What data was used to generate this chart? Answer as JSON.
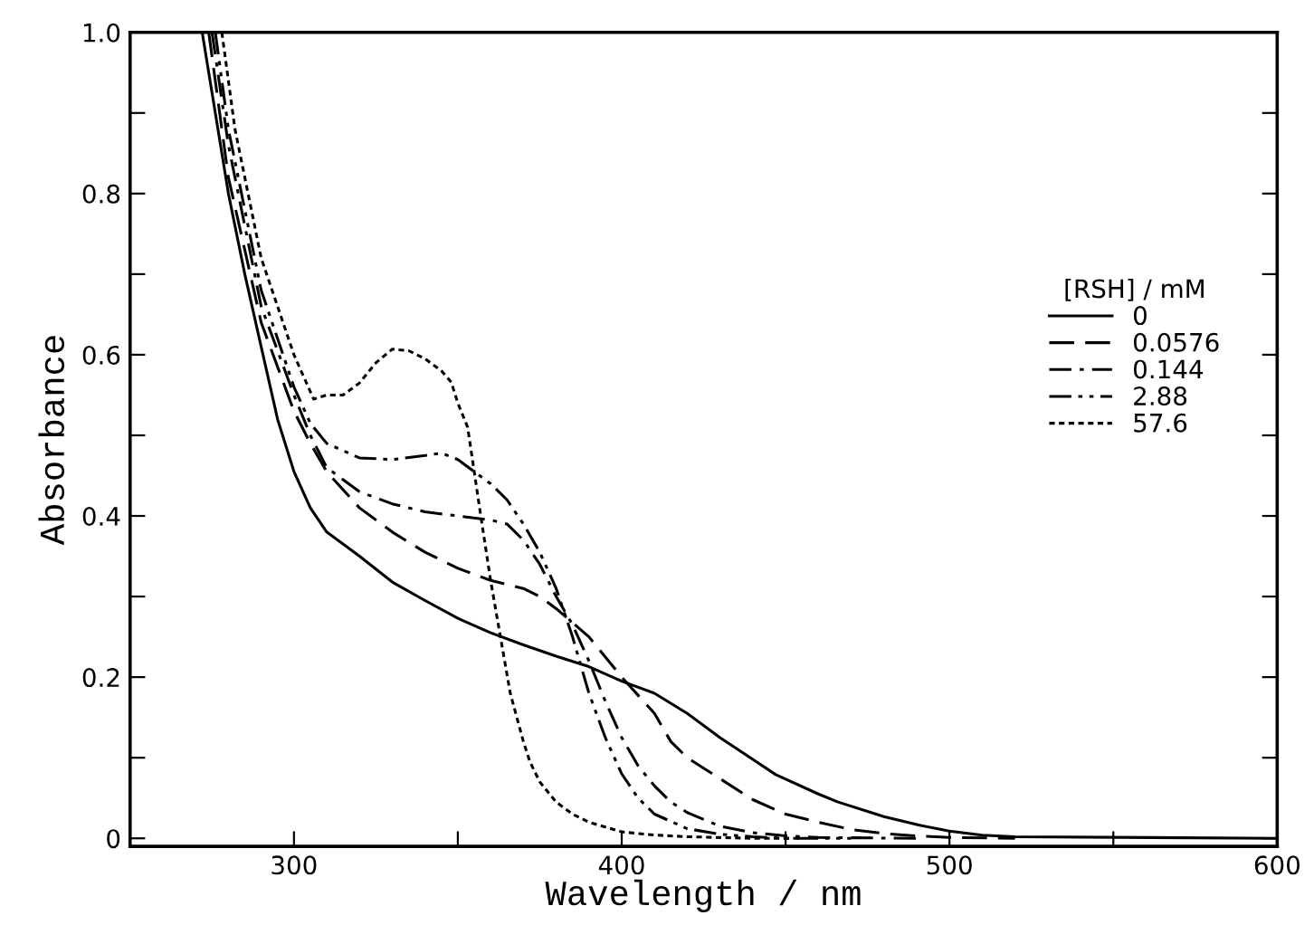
{
  "chart_data": {
    "type": "line",
    "xlabel": "Wavelength / nm",
    "ylabel": "Absorbance",
    "legend_title": "[RSH] / mM",
    "legend": "right",
    "xlim": [
      250,
      600
    ],
    "ylim": [
      -0.01,
      1.0
    ],
    "xticks": [
      300,
      {
        "value": 350,
        "label": null
      },
      400,
      {
        "value": 450,
        "label": null
      },
      500,
      {
        "value": 550,
        "label": null
      },
      600
    ],
    "yticks": [
      {
        "value": 0,
        "label": "0"
      },
      {
        "value": 0.1,
        "label": null
      },
      0.2,
      {
        "value": 0.3,
        "label": null
      },
      0.4,
      {
        "value": 0.5,
        "label": null
      },
      0.6,
      {
        "value": 0.7,
        "label": null
      },
      0.8,
      {
        "value": 0.9,
        "label": null
      },
      {
        "value": 1.0,
        "label": "1.0"
      }
    ],
    "grid": false,
    "series": [
      {
        "name": "0",
        "color": "#000000",
        "line_style": "solid",
        "x": [
          272,
          280,
          285,
          290,
          295,
          300,
          305,
          310,
          320,
          330,
          340,
          350,
          360,
          370,
          380,
          390,
          400,
          410,
          420,
          430,
          440,
          447,
          460,
          466,
          480,
          490,
          500,
          510,
          520,
          600
        ],
        "values": [
          1.0,
          0.8,
          0.7,
          0.61,
          0.52,
          0.455,
          0.41,
          0.38,
          0.35,
          0.318,
          0.295,
          0.273,
          0.255,
          0.24,
          0.226,
          0.213,
          0.195,
          0.18,
          0.155,
          0.125,
          0.098,
          0.079,
          0.055,
          0.045,
          0.027,
          0.017,
          0.009,
          0.004,
          0.002,
          0.0
        ]
      },
      {
        "name": "0.0576",
        "color": "#000000",
        "line_style": "dashed",
        "x": [
          274,
          280,
          290,
          300,
          305,
          310,
          320,
          330,
          340,
          350,
          360,
          370,
          375,
          380,
          390,
          400,
          410,
          415,
          420,
          430,
          440,
          450,
          460,
          470,
          480,
          490,
          500,
          520
        ],
        "values": [
          1.0,
          0.82,
          0.64,
          0.53,
          0.49,
          0.455,
          0.41,
          0.38,
          0.355,
          0.335,
          0.32,
          0.31,
          0.3,
          0.285,
          0.25,
          0.2,
          0.155,
          0.12,
          0.1,
          0.074,
          0.048,
          0.03,
          0.02,
          0.011,
          0.006,
          0.003,
          0.001,
          0.0
        ]
      },
      {
        "name": "0.144",
        "color": "#000000",
        "line_style": "dashdot",
        "x": [
          275,
          280,
          290,
          300,
          305,
          310,
          320,
          330,
          340,
          350,
          360,
          365,
          370,
          375,
          380,
          385,
          390,
          395,
          400,
          405,
          410,
          415,
          420,
          430,
          440,
          450,
          460,
          490
        ],
        "values": [
          1.0,
          0.86,
          0.66,
          0.55,
          0.5,
          0.46,
          0.43,
          0.415,
          0.405,
          0.4,
          0.395,
          0.39,
          0.37,
          0.34,
          0.3,
          0.265,
          0.22,
          0.17,
          0.125,
          0.09,
          0.065,
          0.045,
          0.032,
          0.015,
          0.007,
          0.003,
          0.001,
          0.0
        ]
      },
      {
        "name": "2.88",
        "color": "#000000",
        "line_style": "dashdotdot",
        "x": [
          276,
          280,
          290,
          300,
          305,
          310,
          320,
          330,
          340,
          345,
          350,
          355,
          360,
          365,
          370,
          375,
          380,
          385,
          390,
          395,
          400,
          405,
          410,
          420,
          430,
          440,
          450,
          470
        ],
        "values": [
          1.0,
          0.88,
          0.68,
          0.56,
          0.515,
          0.49,
          0.472,
          0.47,
          0.475,
          0.478,
          0.47,
          0.455,
          0.44,
          0.42,
          0.39,
          0.355,
          0.31,
          0.25,
          0.18,
          0.125,
          0.08,
          0.05,
          0.03,
          0.012,
          0.005,
          0.002,
          0.0,
          0.0
        ]
      },
      {
        "name": "57.6",
        "color": "#000000",
        "line_style": "dotted",
        "x": [
          278,
          282,
          290,
          300,
          306,
          310,
          315,
          320,
          325,
          330,
          335,
          340,
          345,
          348,
          350,
          353,
          357,
          360,
          363,
          366,
          370,
          372,
          375,
          380,
          385,
          390,
          400,
          410,
          420,
          440,
          455
        ],
        "values": [
          1.0,
          0.88,
          0.72,
          0.6,
          0.545,
          0.55,
          0.55,
          0.565,
          0.59,
          0.607,
          0.605,
          0.595,
          0.58,
          0.566,
          0.54,
          0.51,
          0.4,
          0.32,
          0.25,
          0.18,
          0.12,
          0.095,
          0.07,
          0.045,
          0.03,
          0.02,
          0.008,
          0.004,
          0.002,
          0.0,
          0.0
        ]
      }
    ]
  }
}
